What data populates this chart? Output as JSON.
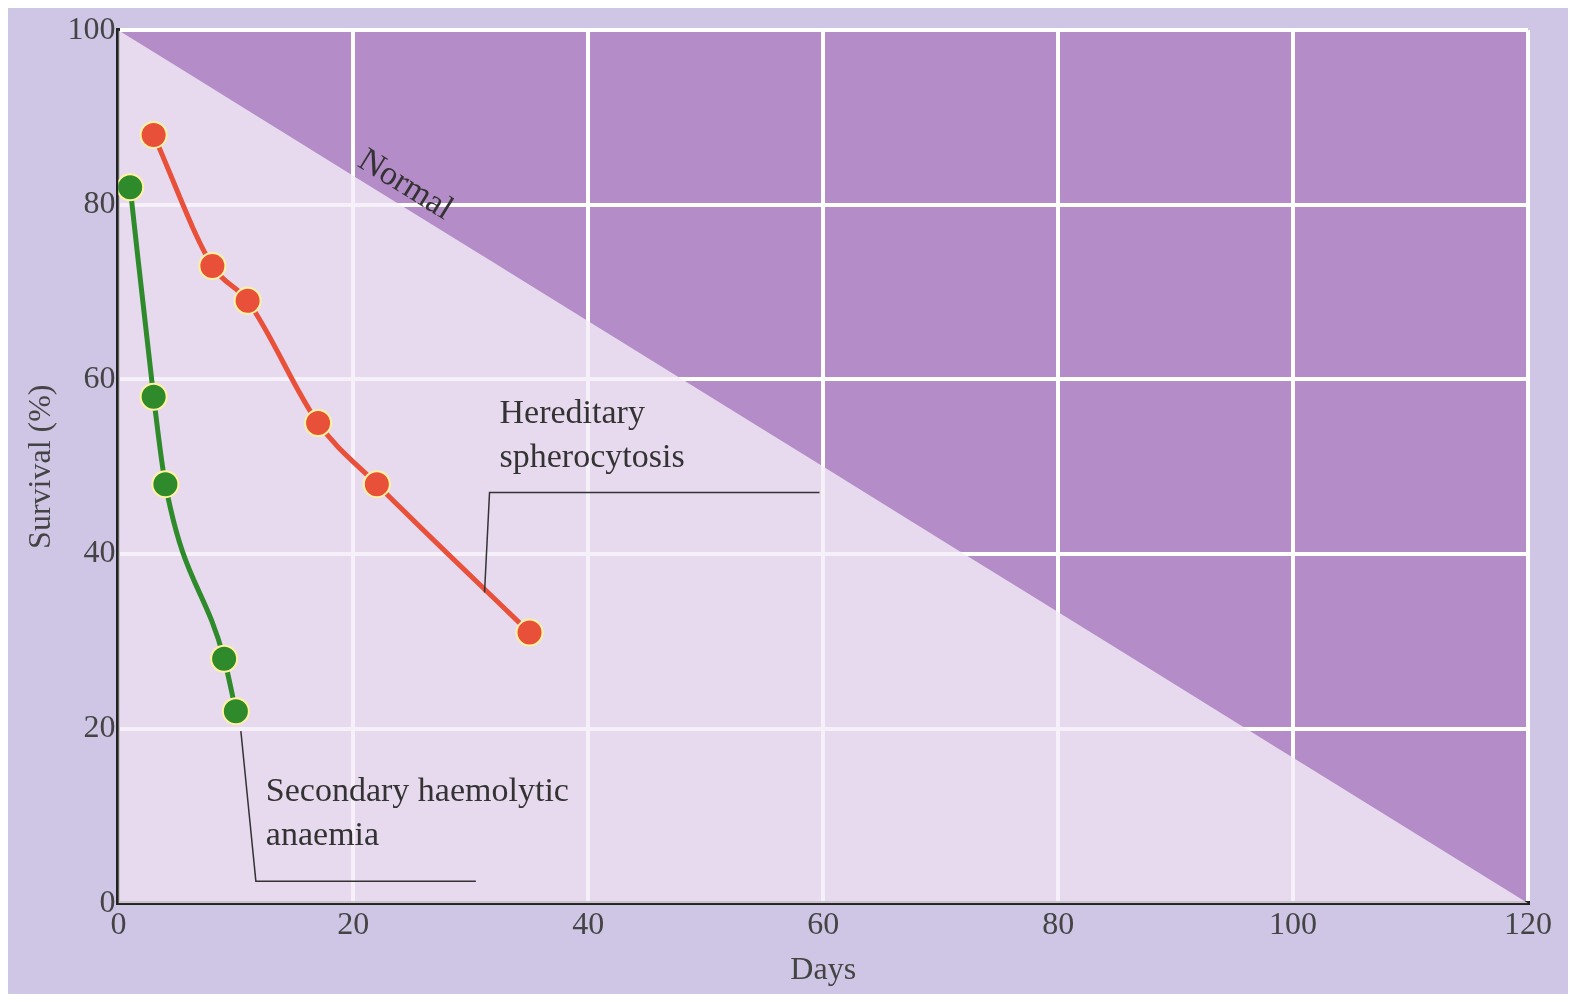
{
  "chart_data": {
    "type": "line",
    "xlabel": "Days",
    "ylabel": "Survival (%)",
    "xlim": [
      0,
      120
    ],
    "ylim": [
      0,
      100
    ],
    "xticks": [
      0,
      20,
      40,
      60,
      80,
      100,
      120
    ],
    "yticks": [
      0,
      20,
      40,
      60,
      80,
      100
    ],
    "grid": true,
    "legend": false,
    "marker": "circle",
    "line_style": "solid",
    "series": [
      {
        "name": "Normal",
        "type": "area",
        "marker": "none",
        "color": "#f4eef8",
        "x": [
          0,
          120
        ],
        "values": [
          100,
          0
        ]
      },
      {
        "name": "Hereditary spherocytosis",
        "color": "#e8503a",
        "x": [
          3,
          8,
          11,
          17,
          22,
          35
        ],
        "values": [
          88,
          73,
          69,
          55,
          48,
          31
        ]
      },
      {
        "name": "Secondary haemolytic anaemia",
        "color": "#2e8a2a",
        "x": [
          1,
          3,
          4,
          9,
          10
        ],
        "values": [
          82,
          58,
          48,
          28,
          22
        ]
      }
    ]
  }
}
